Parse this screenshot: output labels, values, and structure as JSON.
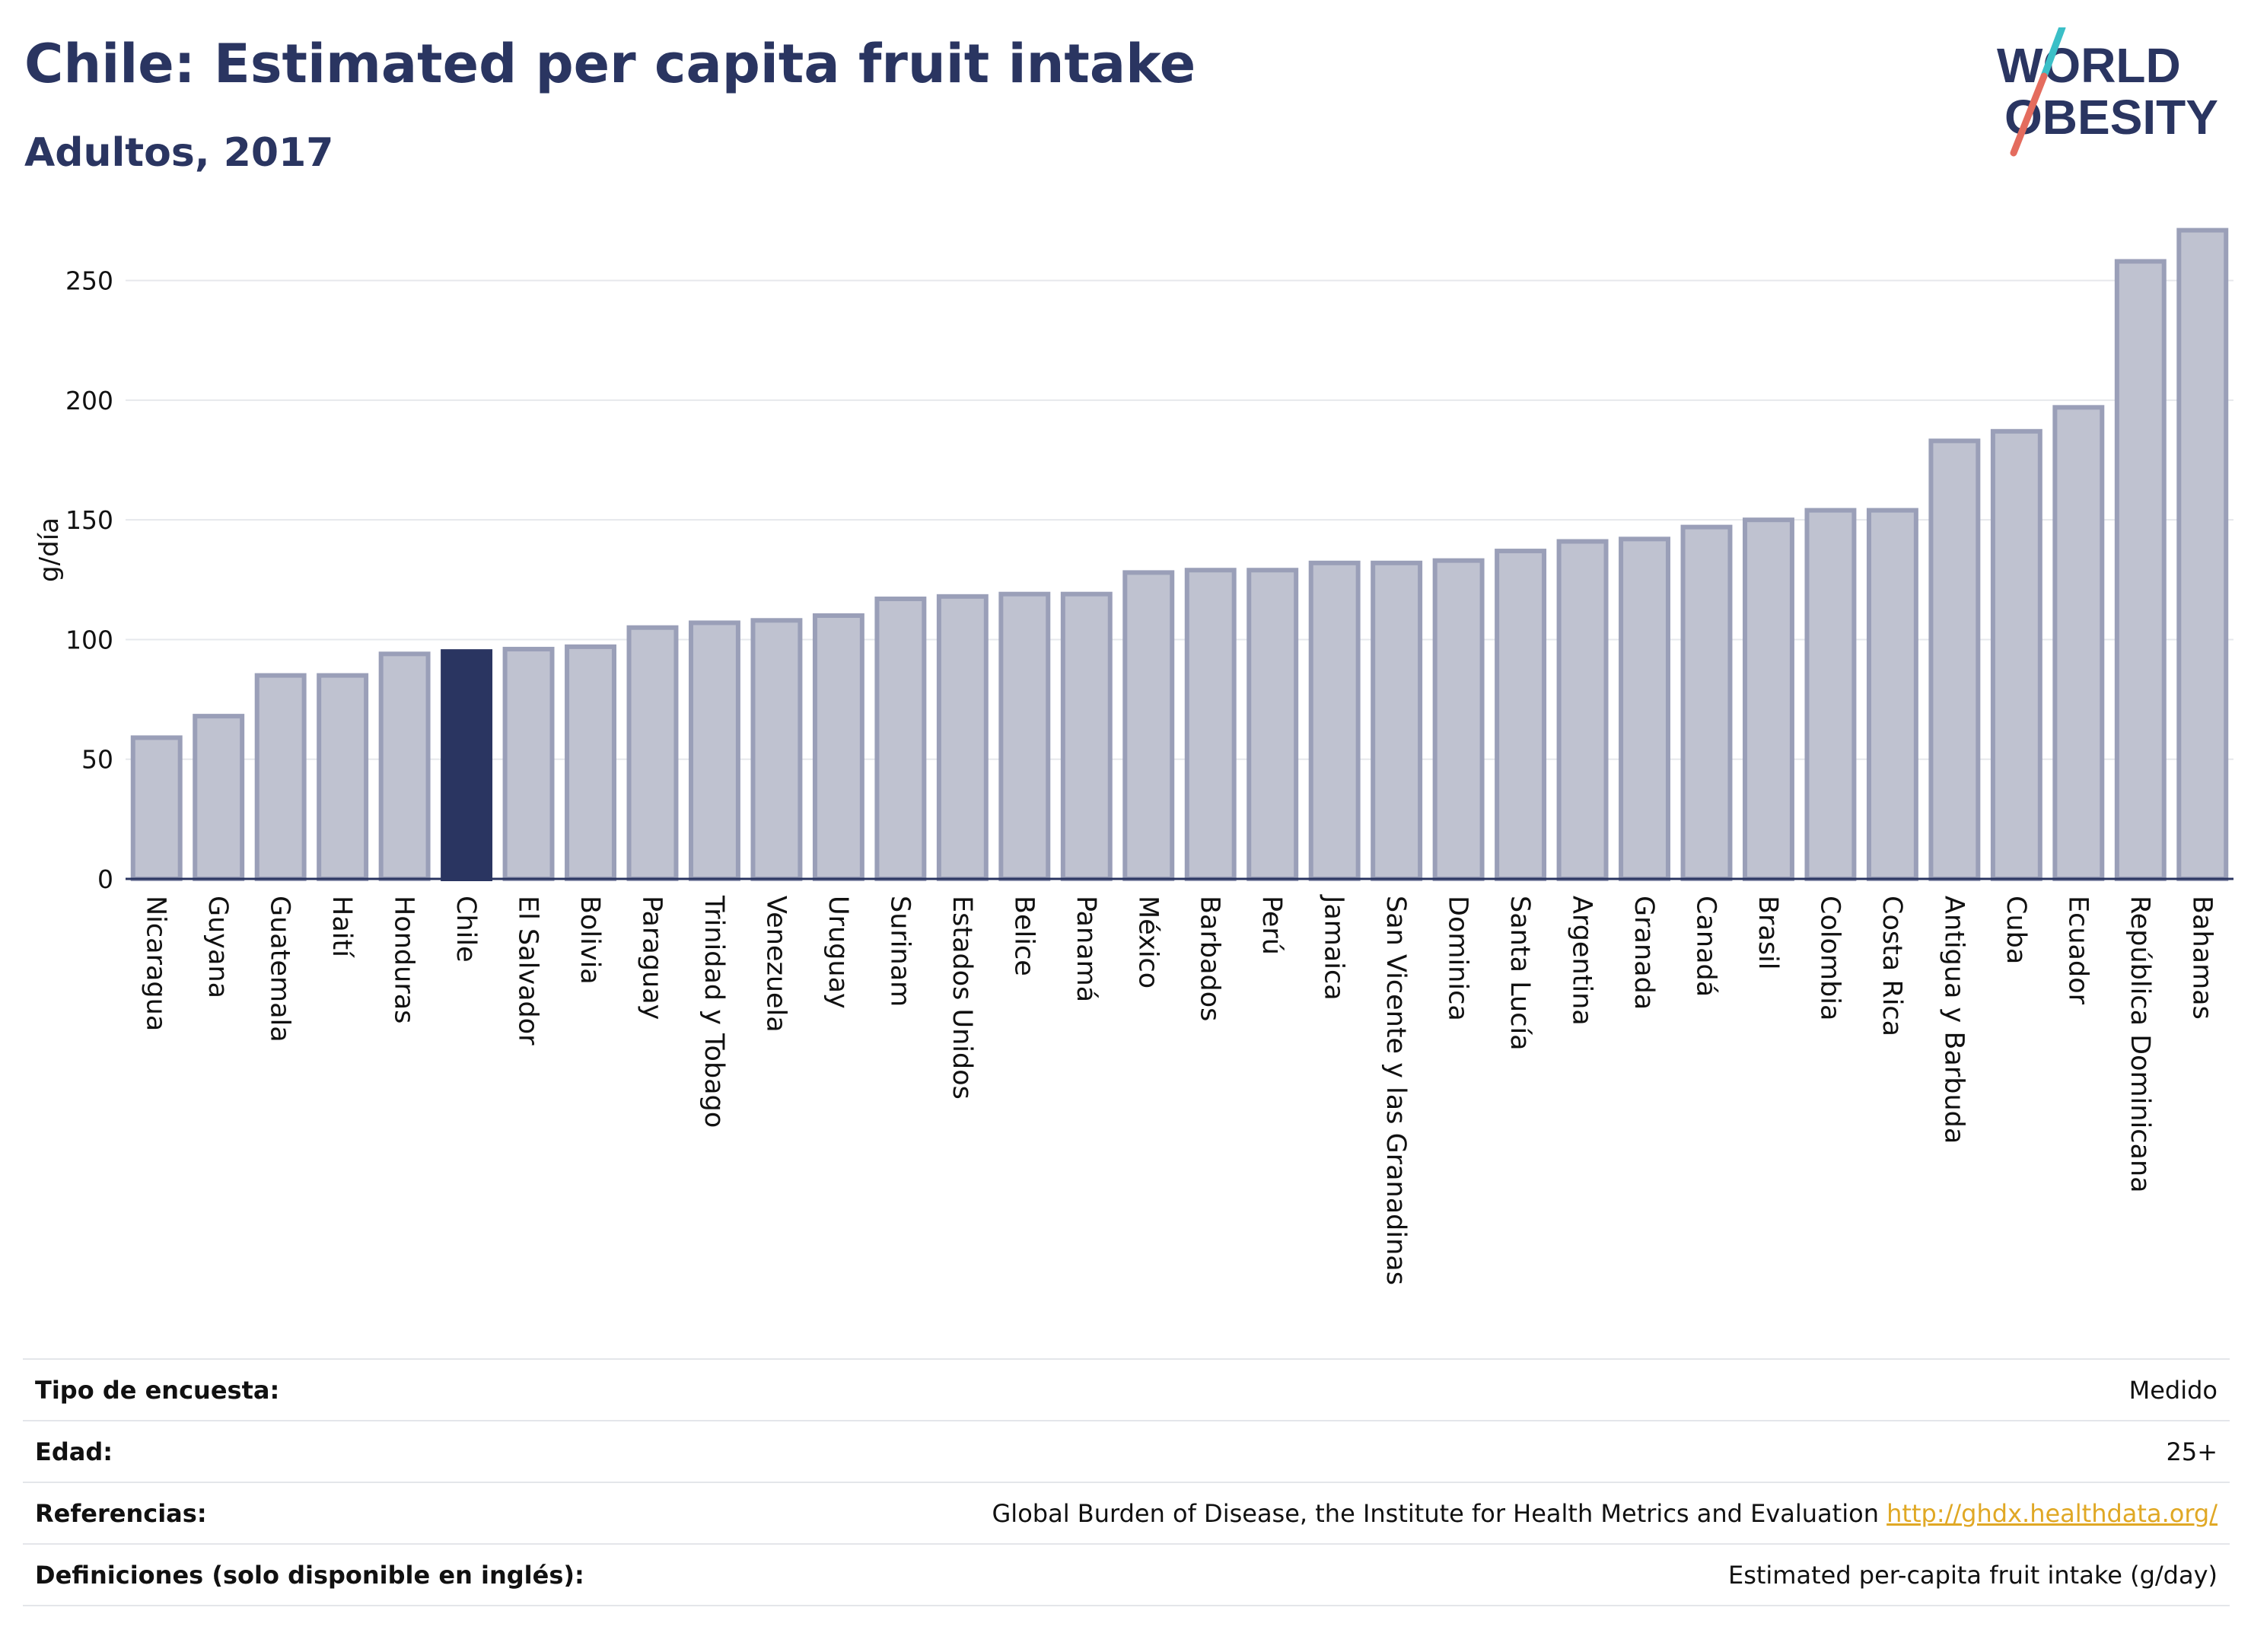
{
  "header": {
    "title": "Chile: Estimated per capita fruit intake",
    "subtitle": "Adultos, 2017"
  },
  "logo": {
    "line1": "WORLD",
    "line2": "OBESITY"
  },
  "chart_data": {
    "type": "bar",
    "ylabel": "g/día",
    "ylim": [
      0,
      275
    ],
    "yticks": [
      0,
      50,
      100,
      150,
      200,
      250
    ],
    "grid": true,
    "highlight": "Chile",
    "colors": {
      "bar": "#bfc2d0",
      "bar_border": "#9a9fb8",
      "highlight": "#2a3561"
    },
    "categories": [
      "Nicaragua",
      "Guyana",
      "Guatemala",
      "Haití",
      "Honduras",
      "Chile",
      "El Salvador",
      "Bolivia",
      "Paraguay",
      "Trinidad y Tobago",
      "Venezuela",
      "Uruguay",
      "Surinam",
      "Estados Unidos",
      "Belice",
      "Panamá",
      "México",
      "Barbados",
      "Perú",
      "Jamaica",
      "San Vicente y las Granadinas",
      "Dominica",
      "Santa Lucía",
      "Argentina",
      "Granada",
      "Canadá",
      "Brasil",
      "Colombia",
      "Costa Rica",
      "Antigua y Barbuda",
      "Cuba",
      "Ecuador",
      "República Dominicana",
      "Bahamas"
    ],
    "values": [
      59,
      68,
      85,
      85,
      94,
      95,
      96,
      97,
      105,
      107,
      108,
      110,
      117,
      118,
      119,
      119,
      128,
      129,
      129,
      132,
      132,
      133,
      137,
      141,
      142,
      147,
      150,
      154,
      154,
      183,
      187,
      197,
      258,
      271
    ]
  },
  "info": {
    "rows": [
      {
        "key": "Tipo de encuesta:",
        "value": "Medido"
      },
      {
        "key": "Edad:",
        "value": "25+"
      },
      {
        "key": "Referencias:",
        "value": "Global Burden of Disease, the Institute for Health Metrics and Evaluation",
        "link": "http://ghdx.healthdata.org/"
      },
      {
        "key": "Definiciones (solo disponible en inglés):",
        "value": "Estimated per-capita fruit intake (g/day)"
      }
    ]
  }
}
